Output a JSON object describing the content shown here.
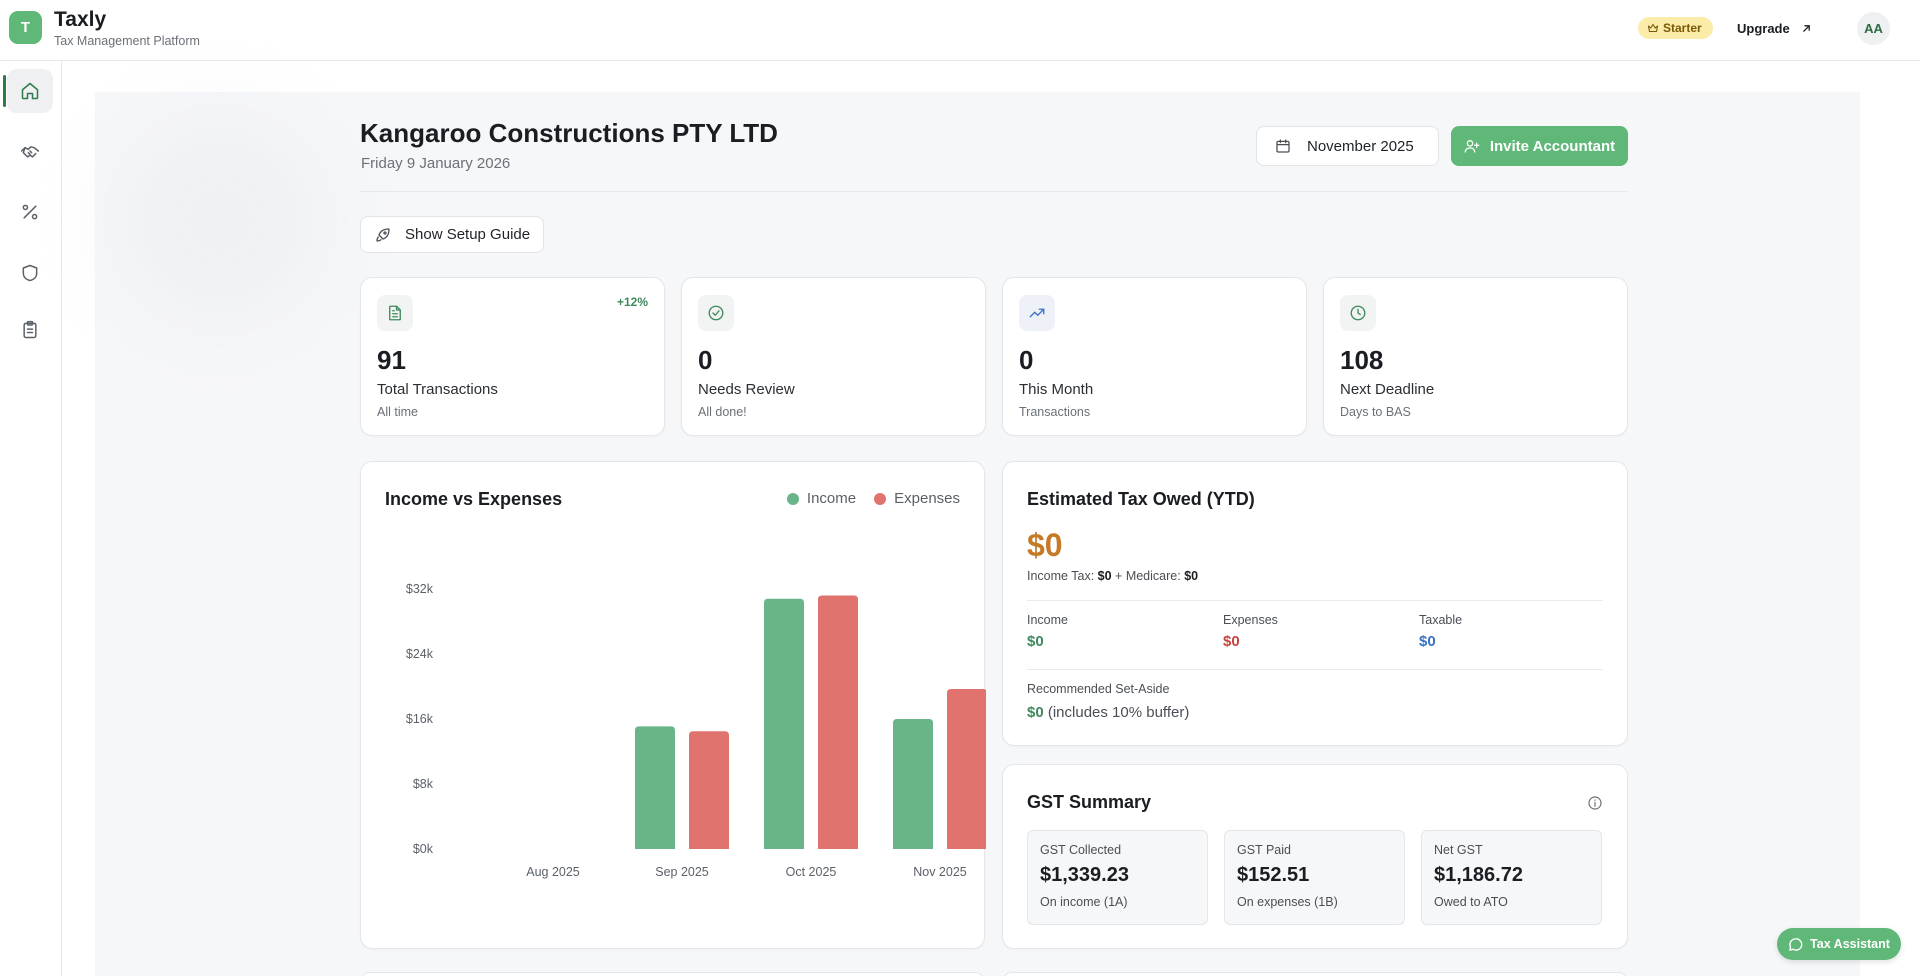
{
  "app": {
    "logo_letter": "T",
    "name": "Taxly",
    "tagline": "Tax Management Platform"
  },
  "header": {
    "plan_badge": "Starter",
    "upgrade_label": "Upgrade",
    "avatar_initials": "AA"
  },
  "sidebar": {
    "items": [
      {
        "icon": "home-icon",
        "active": true
      },
      {
        "icon": "handshake-icon",
        "active": false
      },
      {
        "icon": "percent-icon",
        "active": false
      },
      {
        "icon": "shield-icon",
        "active": false
      },
      {
        "icon": "clipboard-icon",
        "active": false
      }
    ]
  },
  "page": {
    "title": "Kangaroo Constructions PTY LTD",
    "date": "Friday 9 January 2026",
    "period": "November 2025",
    "invite_label": "Invite Accountant",
    "setup_label": "Show Setup Guide"
  },
  "stats": [
    {
      "icon": "document-icon",
      "value": "91",
      "label": "Total Transactions",
      "sub": "All time",
      "delta": "+12%"
    },
    {
      "icon": "check-circle-icon",
      "value": "0",
      "label": "Needs Review",
      "sub": "All done!",
      "delta": ""
    },
    {
      "icon": "trending-up-icon",
      "value": "0",
      "label": "This Month",
      "sub": "Transactions",
      "delta": ""
    },
    {
      "icon": "clock-icon",
      "value": "108",
      "label": "Next Deadline",
      "sub": "Days to BAS",
      "delta": ""
    }
  ],
  "chart": {
    "title": "Income vs Expenses"
  },
  "chart_data": {
    "type": "bar",
    "categories": [
      "Aug 2025",
      "Sep 2025",
      "Oct 2025",
      "Nov 2025"
    ],
    "series": [
      {
        "name": "Income",
        "color": "#6ab48a",
        "values": [
          0,
          15100,
          30800,
          16000
        ]
      },
      {
        "name": "Expenses",
        "color": "#e0736e",
        "values": [
          0,
          14500,
          31200,
          19700
        ]
      }
    ],
    "ylim": [
      0,
      32000
    ],
    "y_ticks": [
      0,
      8000,
      16000,
      24000,
      32000
    ],
    "y_tick_labels": [
      "$0k",
      "$8k",
      "$16k",
      "$24k",
      "$32k"
    ],
    "legend": "top-right",
    "grid": false
  },
  "tax": {
    "title": "Estimated Tax Owed (YTD)",
    "amount": "$0",
    "income_tax_label": "Income Tax:",
    "income_tax_value": "$0",
    "plus_medicare": "+ Medicare:",
    "medicare_value": "$0",
    "income_label": "Income",
    "income_value": "$0",
    "expenses_label": "Expenses",
    "expenses_value": "$0",
    "taxable_label": "Taxable",
    "taxable_value": "$0",
    "setaside_label": "Recommended Set-Aside",
    "setaside_value": "$0",
    "setaside_note": "(includes 10% buffer)"
  },
  "gst": {
    "title": "GST Summary",
    "boxes": [
      {
        "label": "GST Collected",
        "value": "$1,339.23",
        "sub": "On income (1A)"
      },
      {
        "label": "GST Paid",
        "value": "$152.51",
        "sub": "On expenses (1B)"
      },
      {
        "label": "Net GST",
        "value": "$1,186.72",
        "sub": "Owed to ATO"
      }
    ]
  },
  "assistant": {
    "label": "Tax Assistant"
  },
  "colors": {
    "brand": "#5fb877",
    "income": "#3f8a5d",
    "expenses": "#c7453f",
    "taxable": "#3a72c4",
    "tax_amount": "#c47a27",
    "badge": "#fbecaa"
  }
}
